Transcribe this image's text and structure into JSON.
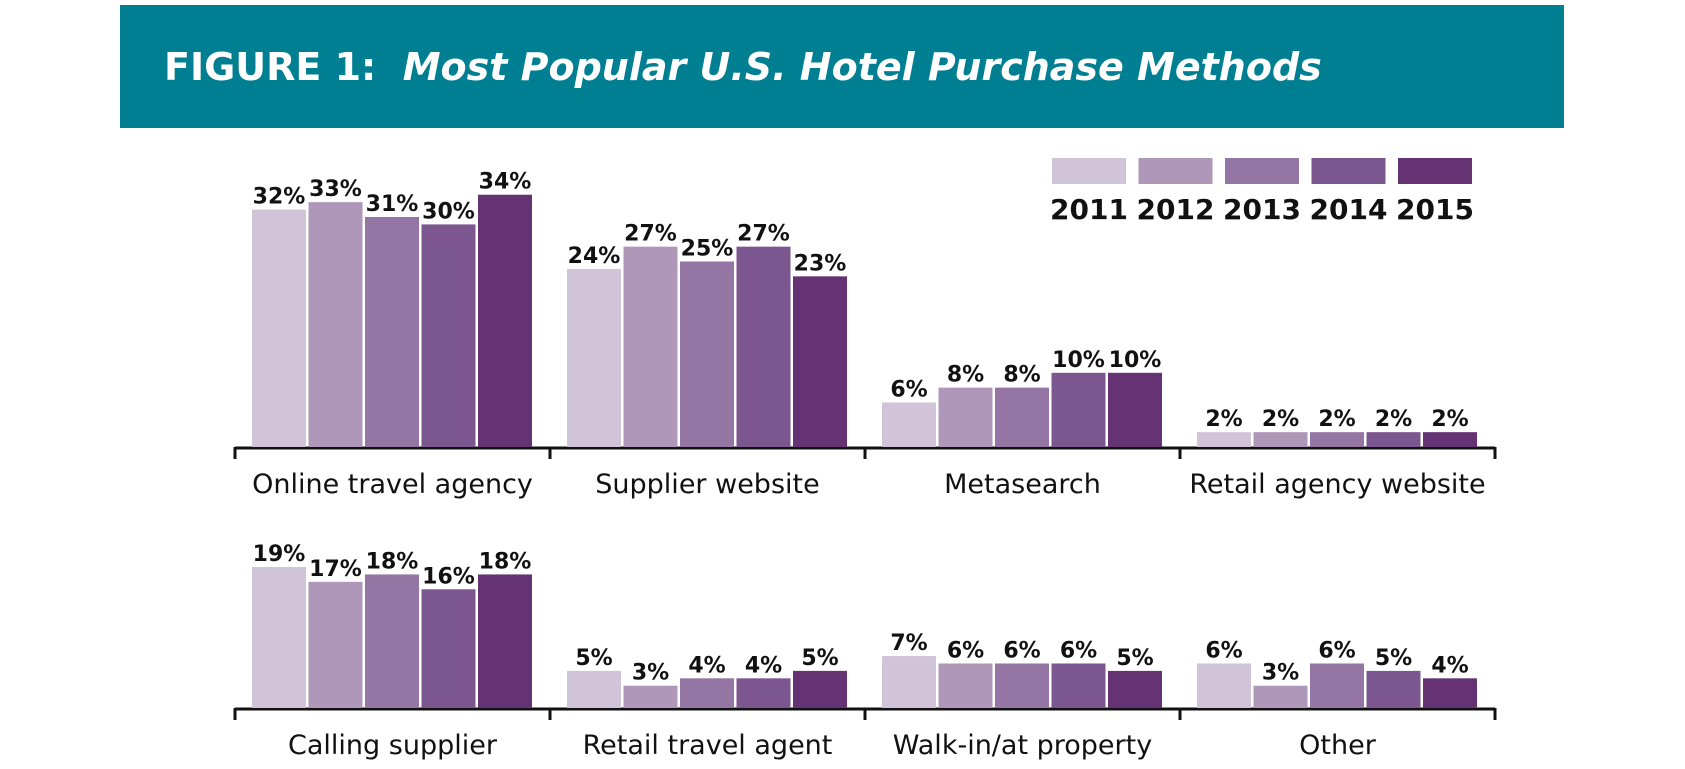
{
  "header": {
    "figure_label": "FIGURE 1:",
    "title": "Most Popular U.S. Hotel Purchase Methods"
  },
  "chart_data": {
    "type": "bar",
    "title": "Most Popular U.S. Hotel Purchase Methods",
    "xlabel": "",
    "ylabel": "",
    "grid": false,
    "legend_position": "top-right",
    "unit": "%",
    "series_names": [
      "2011",
      "2012",
      "2013",
      "2014",
      "2015"
    ],
    "colors": [
      "#d1c4d8",
      "#af97b9",
      "#9475a3",
      "#7b568f",
      "#653373"
    ],
    "categories": [
      "Online travel agency",
      "Supplier website",
      "Metasearch",
      "Retail agency website",
      "Calling supplier",
      "Retail travel agent",
      "Walk-in/at property",
      "Other"
    ],
    "series": [
      {
        "name": "2011",
        "values": [
          32,
          24,
          6,
          2,
          19,
          5,
          7,
          6
        ]
      },
      {
        "name": "2012",
        "values": [
          33,
          27,
          8,
          2,
          17,
          3,
          6,
          3
        ]
      },
      {
        "name": "2013",
        "values": [
          31,
          25,
          8,
          2,
          18,
          4,
          6,
          6
        ]
      },
      {
        "name": "2014",
        "values": [
          30,
          27,
          10,
          2,
          16,
          4,
          6,
          5
        ]
      },
      {
        "name": "2015",
        "values": [
          34,
          23,
          10,
          2,
          18,
          5,
          5,
          4
        ]
      }
    ]
  }
}
